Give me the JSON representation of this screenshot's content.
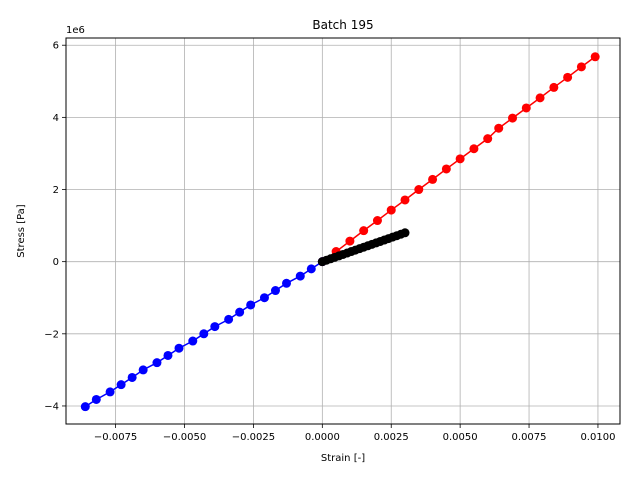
{
  "chart_data": {
    "type": "scatter",
    "title": "Batch 195",
    "xlabel": "Strain [-]",
    "ylabel": "Stress [Pa]",
    "y_scale_note": "1e6",
    "xlim": [
      -0.0093,
      0.0108
    ],
    "ylim": [
      -4.5,
      6.2
    ],
    "grid": true,
    "x_ticks": [
      -0.0075,
      -0.005,
      -0.0025,
      0.0,
      0.0025,
      0.005,
      0.0075,
      0.01
    ],
    "x_tick_labels": [
      "−0.0075",
      "−0.0050",
      "−0.0025",
      "0.0000",
      "0.0025",
      "0.0050",
      "0.0075",
      "0.0100"
    ],
    "y_ticks": [
      -4,
      -2,
      0,
      2,
      4,
      6
    ],
    "y_tick_labels": [
      "−4",
      "−2",
      "0",
      "2",
      "4",
      "6"
    ],
    "series": [
      {
        "color": "#ff0000",
        "marker": "circle",
        "line": true,
        "x": [
          0.0,
          0.0005,
          0.001,
          0.0015,
          0.002,
          0.0025,
          0.003,
          0.0035,
          0.004,
          0.0045,
          0.005,
          0.0055,
          0.006,
          0.0064,
          0.0069,
          0.0074,
          0.0079,
          0.0084,
          0.0089,
          0.0094,
          0.0099
        ],
        "y": [
          0.0,
          0.28,
          0.57,
          0.86,
          1.14,
          1.43,
          1.71,
          2.0,
          2.28,
          2.57,
          2.85,
          3.13,
          3.41,
          3.7,
          3.98,
          4.26,
          4.54,
          4.83,
          5.11,
          5.4,
          5.68
        ]
      },
      {
        "color": "#0000ff",
        "marker": "circle",
        "line": true,
        "x": [
          0.0,
          -0.0004,
          -0.0008,
          -0.0013,
          -0.0017,
          -0.0021,
          -0.0026,
          -0.003,
          -0.0034,
          -0.0039,
          -0.0043,
          -0.0047,
          -0.0052,
          -0.0056,
          -0.006,
          -0.0065,
          -0.0069,
          -0.0073,
          -0.0077,
          -0.0082,
          -0.0086
        ],
        "y": [
          0.0,
          -0.2,
          -0.4,
          -0.6,
          -0.8,
          -1.0,
          -1.2,
          -1.4,
          -1.6,
          -1.8,
          -2.0,
          -2.2,
          -2.4,
          -2.6,
          -2.8,
          -3.0,
          -3.21,
          -3.41,
          -3.61,
          -3.82,
          -4.02
        ]
      },
      {
        "color": "#000000",
        "marker": "circle",
        "line": true,
        "x": [
          0.0,
          0.00015,
          0.0003,
          0.00045,
          0.0006,
          0.00075,
          0.0009,
          0.00105,
          0.0012,
          0.00135,
          0.0015,
          0.00165,
          0.0018,
          0.00195,
          0.0021,
          0.00225,
          0.0024,
          0.00255,
          0.0027,
          0.00285,
          0.003
        ],
        "y": [
          0.0,
          0.04,
          0.08,
          0.12,
          0.16,
          0.2,
          0.24,
          0.28,
          0.32,
          0.36,
          0.4,
          0.44,
          0.48,
          0.52,
          0.56,
          0.6,
          0.64,
          0.68,
          0.72,
          0.76,
          0.8
        ]
      }
    ]
  }
}
